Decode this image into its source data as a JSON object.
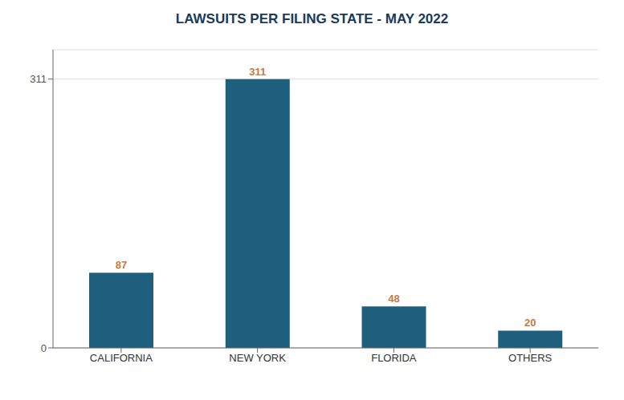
{
  "chart_data": {
    "type": "bar",
    "title": "LAWSUITS PER FILING STATE - MAY 2022",
    "categories": [
      "CALIFORNIA",
      "NEW YORK",
      "FLORIDA",
      "OTHERS"
    ],
    "values": [
      87,
      311,
      48,
      20
    ],
    "color": "#1d5f7c",
    "ylim": [
      0,
      345
    ],
    "yticks": [
      0,
      311
    ],
    "grid": true,
    "data_labels": true
  }
}
